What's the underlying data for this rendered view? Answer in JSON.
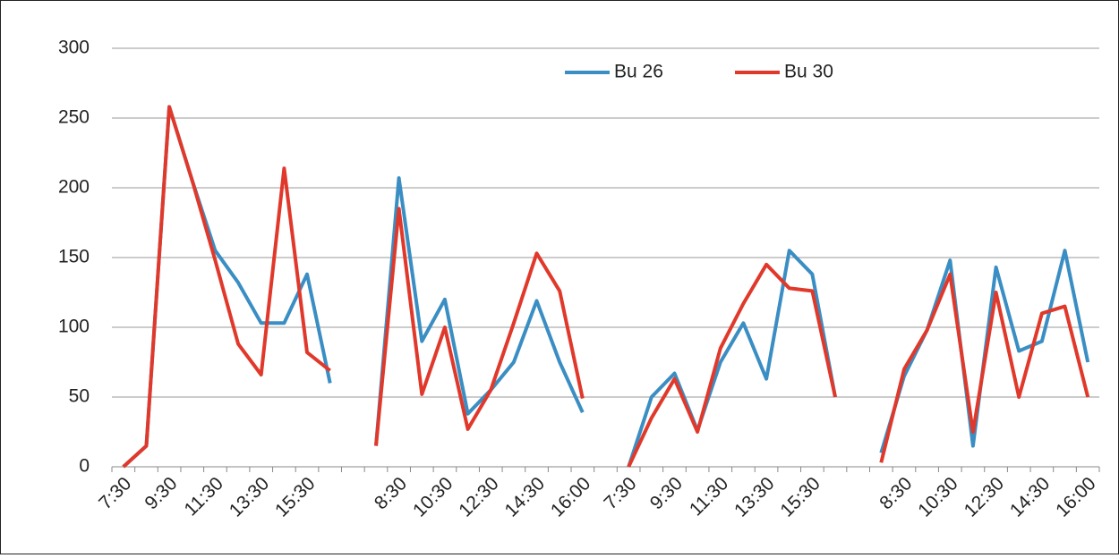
{
  "chart_data": {
    "type": "line",
    "categories": [
      "7:30",
      null,
      "9:30",
      null,
      "11:30",
      null,
      "13:30",
      null,
      "15:30",
      null,
      null,
      null,
      "8:30",
      null,
      "10:30",
      null,
      "12:30",
      null,
      "14:30",
      null,
      "16:00",
      null,
      "7:30",
      null,
      "9:30",
      null,
      "11:30",
      null,
      "13:30",
      null,
      "15:30",
      null,
      null,
      null,
      "8:30",
      null,
      "10:30",
      null,
      "12:30",
      null,
      "14:30",
      null,
      "16:00"
    ],
    "series": [
      {
        "name": "Bu 26",
        "color": "#3a8ec3",
        "values": [
          0,
          15,
          258,
          205,
          155,
          132,
          103,
          103,
          138,
          60,
          null,
          15,
          207,
          90,
          120,
          38,
          55,
          75,
          119,
          75,
          39,
          null,
          0,
          50,
          67,
          26,
          75,
          103,
          63,
          155,
          138,
          50,
          null,
          10,
          65,
          98,
          148,
          15,
          143,
          83,
          90,
          155,
          75
        ]
      },
      {
        "name": "Bu 30",
        "color": "#e0392b",
        "values": [
          0,
          15,
          258,
          205,
          148,
          88,
          66,
          214,
          82,
          69,
          null,
          15,
          185,
          52,
          100,
          27,
          55,
          103,
          153,
          126,
          49,
          null,
          0,
          35,
          63,
          25,
          85,
          117,
          145,
          128,
          126,
          50,
          null,
          3,
          70,
          98,
          138,
          25,
          125,
          50,
          110,
          115,
          50
        ]
      }
    ],
    "ylim": [
      0,
      300
    ],
    "yticks": [
      0,
      50,
      100,
      150,
      200,
      250,
      300
    ],
    "grid": true,
    "legend": "top"
  }
}
